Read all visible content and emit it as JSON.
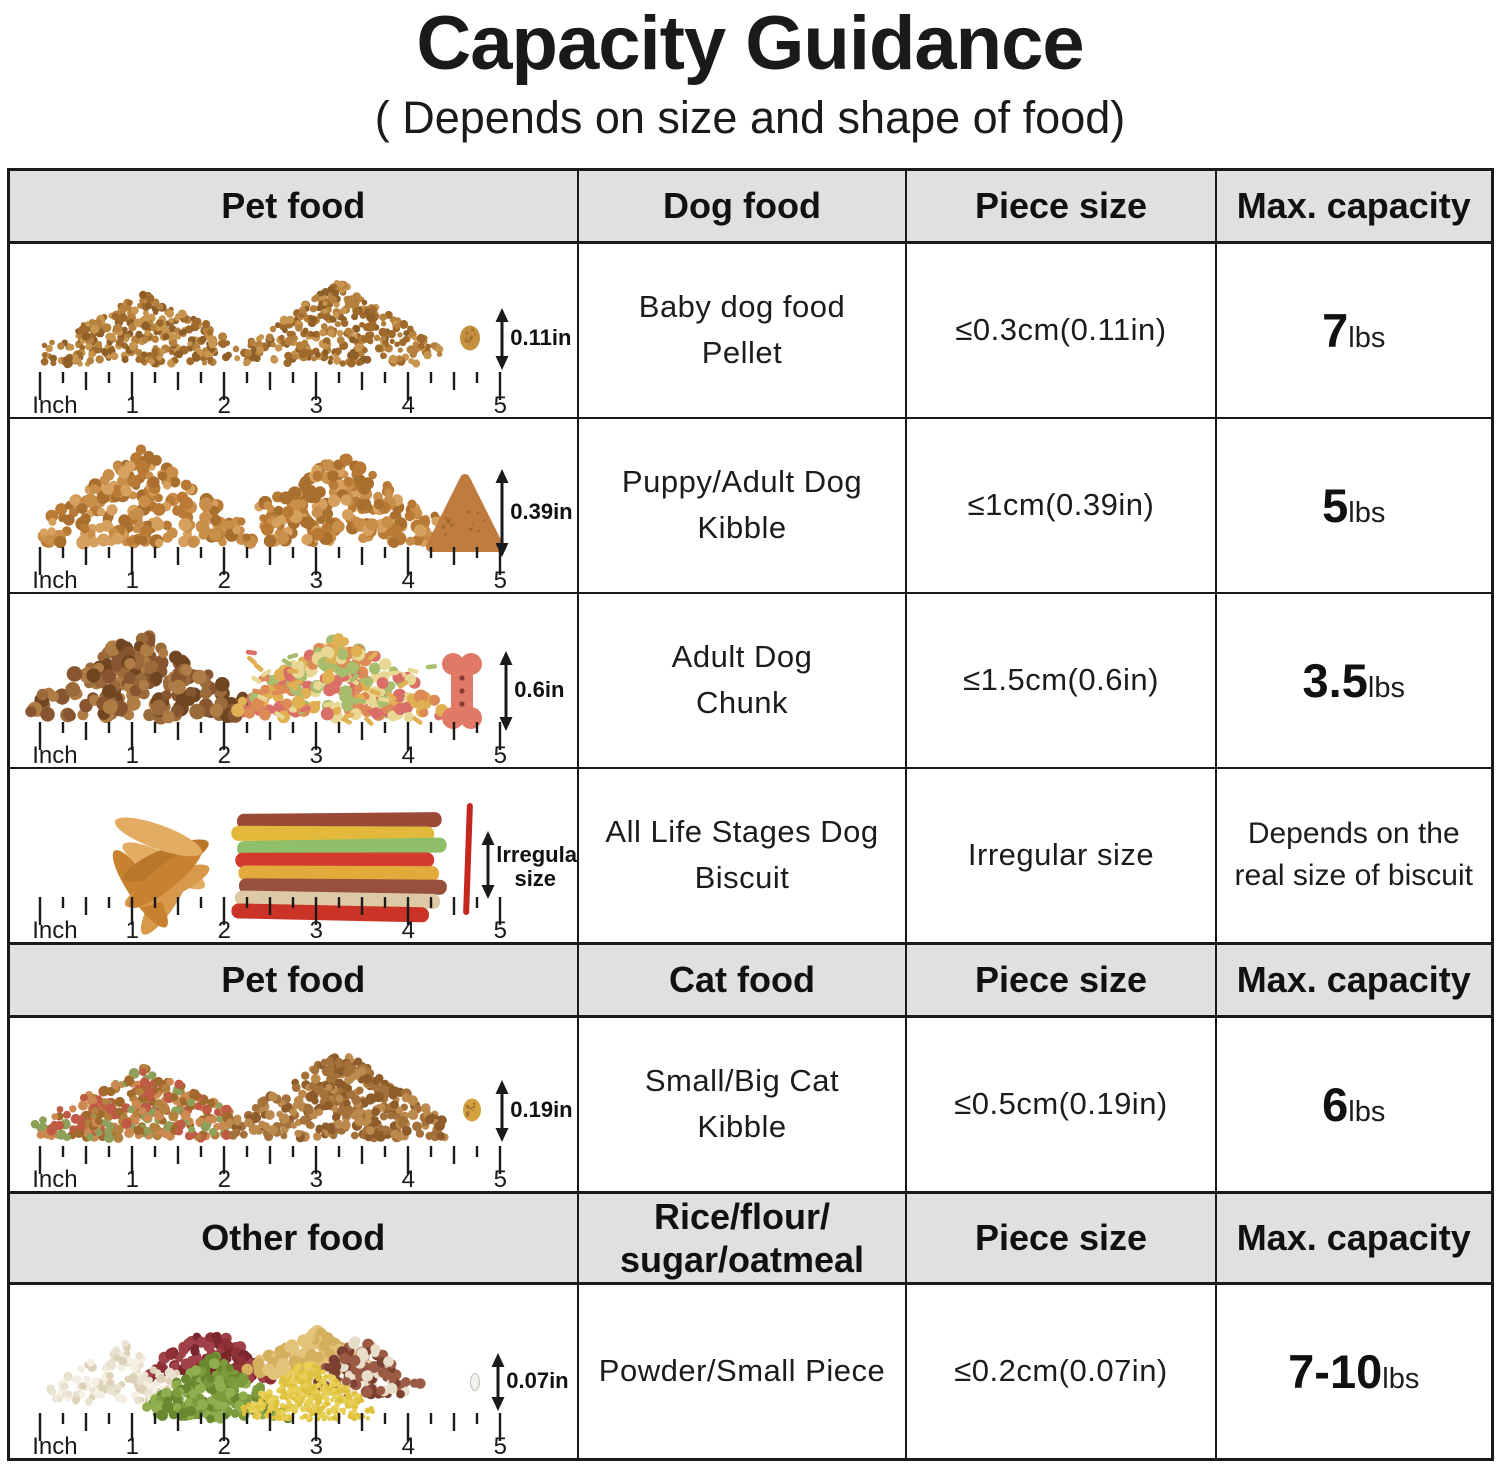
{
  "title": "Capacity Guidance",
  "subtitle": "( Depends on size and shape of food)",
  "ruler": {
    "unit": "Inch",
    "numbers": [
      "1",
      "2",
      "3",
      "4",
      "5"
    ]
  },
  "rows": [
    {
      "type": "header",
      "cells": [
        "Pet food",
        "Dog food",
        "Piece size",
        "Max. capacity"
      ]
    },
    {
      "type": "food",
      "art": "baby_pellets",
      "annotation": "0.11in",
      "food": "Baby dog food\nPellet",
      "piece_size": "≤0.3cm(0.11in)",
      "capacity": {
        "value": "7",
        "unit": "lbs"
      }
    },
    {
      "type": "food",
      "art": "dog_kibble",
      "annotation": "0.39in",
      "food": "Puppy/Adult Dog\nKibble",
      "piece_size": "≤1cm(0.39in)",
      "capacity": {
        "value": "5",
        "unit": "lbs"
      }
    },
    {
      "type": "food",
      "art": "dog_chunks",
      "annotation": "0.6in",
      "food": "Adult Dog\nChunk",
      "piece_size": "≤1.5cm(0.6in)",
      "capacity": {
        "value": "3.5",
        "unit": "lbs"
      }
    },
    {
      "type": "food",
      "art": "dog_biscuits",
      "annotation": "lrregular\nsize",
      "food": "All Life Stages Dog\nBiscuit",
      "piece_size": "Irregular size",
      "capacity": {
        "text": "Depends on the\nreal size of biscuit"
      }
    },
    {
      "type": "header",
      "cells": [
        "Pet food",
        "Cat food",
        "Piece size",
        "Max. capacity"
      ]
    },
    {
      "type": "food",
      "art": "cat_kibble",
      "annotation": "0.19in",
      "food": "Small/Big Cat\nKibble",
      "piece_size": "≤0.5cm(0.19in)",
      "capacity": {
        "value": "6",
        "unit": "lbs"
      }
    },
    {
      "type": "header",
      "cells": [
        "Other food",
        "Rice/flour/\nsugar/oatmeal",
        "Piece size",
        "Max. capacity"
      ]
    },
    {
      "type": "food",
      "art": "grains",
      "annotation": "0.07in",
      "food": "Powder/Small Piece",
      "piece_size": "≤0.2cm(0.07in)",
      "capacity": {
        "value": "7-10",
        "unit": "lbs"
      }
    }
  ],
  "colors": {
    "header_bg": "#e0e0e0",
    "border": "#1a1a1a",
    "text": "#1c1c1c"
  },
  "illustrations": {
    "baby_pellets": {
      "pile_colors": [
        "#b5813e",
        "#a06a2c",
        "#c8954e",
        "#8f5f28"
      ],
      "piece_color": "#c3913f"
    },
    "dog_kibble": {
      "pile_colors": [
        "#c98e4a",
        "#b87a35",
        "#d6a05e",
        "#a96f2e"
      ],
      "piece_color": "#c07c3e"
    },
    "dog_chunks": {
      "pile_colors": [
        "#9a6a3a",
        "#875530",
        "#b07c45",
        "#6f4522"
      ],
      "treat_colors": [
        "#e0b052",
        "#a8bd6e",
        "#dd8b55",
        "#d96f66",
        "#e8d795"
      ],
      "piece_color": "#e07a66"
    },
    "dog_biscuits": {
      "jerky_colors": [
        "#d89a4a",
        "#c8822f",
        "#e2ad63",
        "#b9772a"
      ],
      "stick_colors": [
        "#9b4a38",
        "#e2b93b",
        "#8fbf6a",
        "#d23b2e",
        "#e2a93b",
        "#96503c",
        "#ddc9a3",
        "#cc3327"
      ],
      "piece_color": "#c3271d"
    },
    "cat_kibble": {
      "pile_colors": [
        "#b5813e",
        "#c05a45",
        "#8fa05a",
        "#cc8a52",
        "#a06a2c"
      ],
      "pile2_colors": [
        "#a5713a",
        "#8d5c2a",
        "#bd8a4d"
      ],
      "piece_color": "#d2a23f"
    },
    "grains": {
      "barley": "#e9e2d0",
      "red_bean": "#8e3036",
      "mung_bean": "#7d9a3d",
      "millet": "#e8cf56",
      "chickpea": "#e3c279",
      "mixed_bean": "#9a5a44",
      "piece_color": "#f4f2ec"
    }
  }
}
